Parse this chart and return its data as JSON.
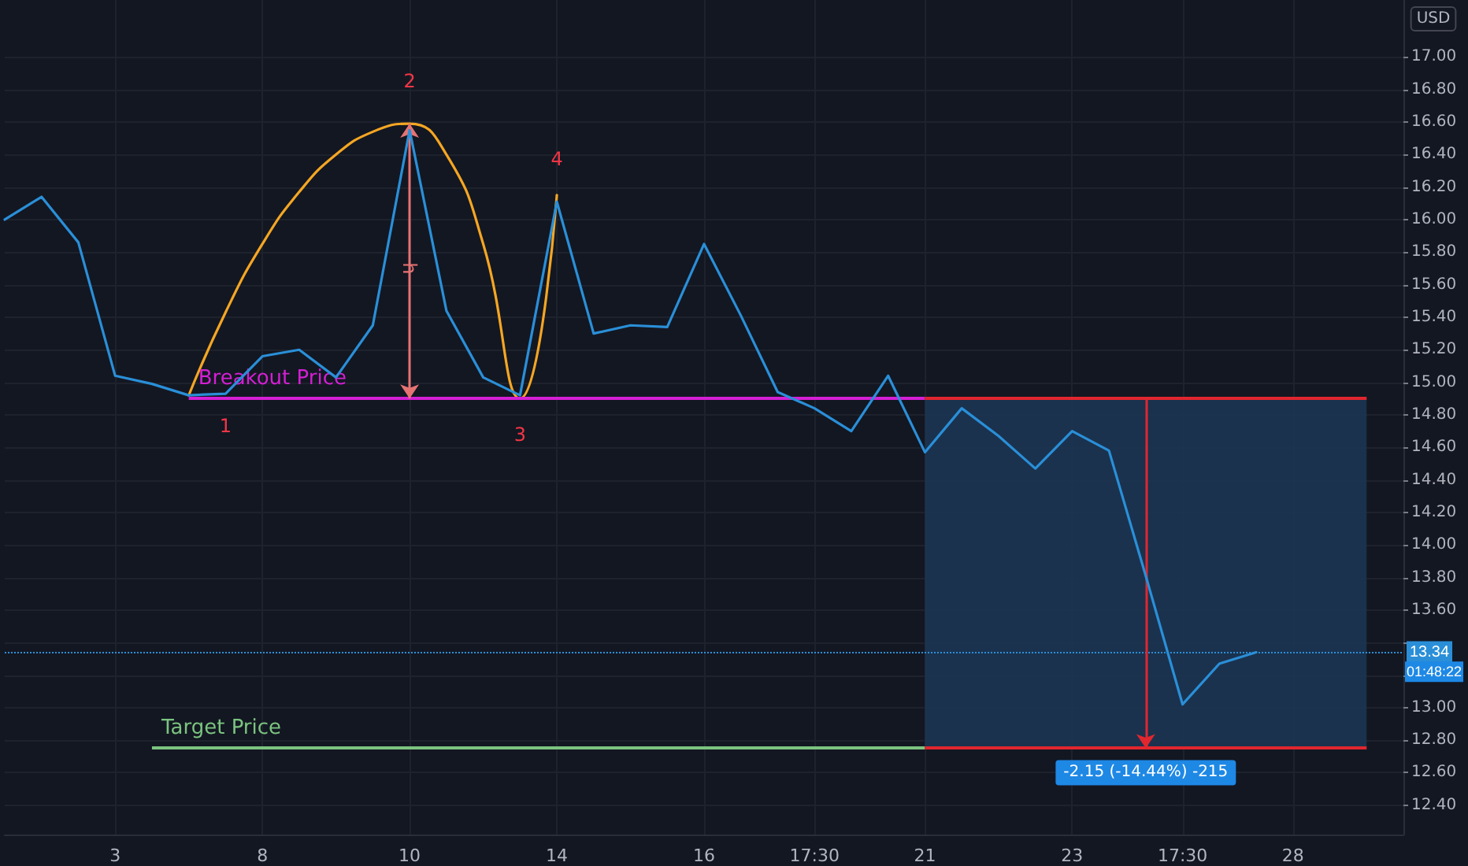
{
  "chart_data": {
    "type": "line",
    "categories": [
      null,
      null,
      null,
      "3",
      null,
      null,
      null,
      "8",
      null,
      null,
      null,
      "10",
      null,
      null,
      null,
      "14",
      null,
      null,
      null,
      "16",
      null,
      null,
      "17:30",
      null,
      null,
      "21",
      null,
      null,
      null,
      "23",
      null,
      null,
      "17:30",
      null,
      null,
      "28",
      null,
      null,
      null
    ],
    "series": [
      {
        "color": "#2a8fd8",
        "values": [
          16.0,
          16.14,
          15.86,
          15.04,
          14.99,
          14.92,
          14.93,
          15.16,
          15.2,
          15.03,
          15.35,
          16.55,
          15.44,
          15.03,
          14.92,
          16.11,
          15.3,
          15.35,
          15.34,
          15.85,
          15.41,
          14.94,
          14.84,
          14.7,
          15.04,
          14.57,
          14.84,
          14.67,
          14.47,
          14.7,
          14.58,
          13.81,
          13.02,
          13.27,
          13.34,
          null,
          null,
          null,
          null
        ]
      },
      {
        "color": "#f5a623",
        "values": [
          null,
          null,
          null,
          null,
          null,
          14.92,
          15.43,
          15.85,
          16.17,
          16.4,
          16.54,
          16.59,
          16.4,
          15.85,
          14.9,
          16.15,
          null,
          null,
          null,
          null,
          null,
          null,
          null,
          null,
          null,
          null,
          null,
          null,
          null,
          null,
          null,
          null,
          null,
          null,
          null,
          null,
          null,
          null,
          null
        ]
      }
    ],
    "ylim": [
      12.22,
      17.35
    ],
    "yticks": [
      {
        "value": 12.4,
        "label": "12.40"
      },
      {
        "value": 12.6,
        "label": "12.60"
      },
      {
        "value": 12.8,
        "label": "12.80"
      },
      {
        "value": 13.0,
        "label": "13.00"
      },
      {
        "value": 13.2,
        "label": null
      },
      {
        "value": 13.4,
        "label": null
      },
      {
        "value": 13.6,
        "label": "13.60"
      },
      {
        "value": 13.8,
        "label": "13.80"
      },
      {
        "value": 14.0,
        "label": "14.00"
      },
      {
        "value": 14.2,
        "label": "14.20"
      },
      {
        "value": 14.4,
        "label": "14.40"
      },
      {
        "value": 14.6,
        "label": "14.60"
      },
      {
        "value": 14.8,
        "label": "14.80"
      },
      {
        "value": 15.0,
        "label": "15.00"
      },
      {
        "value": 15.2,
        "label": "15.20"
      },
      {
        "value": 15.4,
        "label": "15.40"
      },
      {
        "value": 15.6,
        "label": "15.60"
      },
      {
        "value": 15.8,
        "label": "15.80"
      },
      {
        "value": 16.0,
        "label": "16.00"
      },
      {
        "value": 16.2,
        "label": "16.20"
      },
      {
        "value": 16.4,
        "label": "16.40"
      },
      {
        "value": 16.6,
        "label": "16.60"
      },
      {
        "value": 16.8,
        "label": "16.80"
      },
      {
        "value": 17.0,
        "label": "17.00"
      }
    ],
    "ref_lines": [
      {
        "axis": "y",
        "value": 14.9,
        "label": "Breakout Price",
        "color": "#d41fd4",
        "line_style": "solid"
      },
      {
        "axis": "y",
        "value": 12.75,
        "label": "Target Price",
        "color": "#7bc47f",
        "line_style": "solid"
      },
      {
        "axis": "y",
        "value": 13.34,
        "label": "13.34",
        "color": "#2a8fd8",
        "line_style": "dotted"
      },
      {
        "axis": "y",
        "value": 14.9,
        "color": "#e0262f",
        "line_style": "solid"
      },
      {
        "axis": "y",
        "value": 12.75,
        "color": "#e0262f",
        "line_style": "solid"
      }
    ],
    "bands": [
      {
        "axis": "y",
        "from": 12.75,
        "to": 14.9,
        "color": "#1c3553"
      }
    ],
    "annotations": [
      "1",
      "2",
      "3",
      "4",
      "h",
      "-2.15 (-14.44%) -215",
      "01:48:22",
      "USD"
    ],
    "grid": true,
    "marker": "none"
  }
}
